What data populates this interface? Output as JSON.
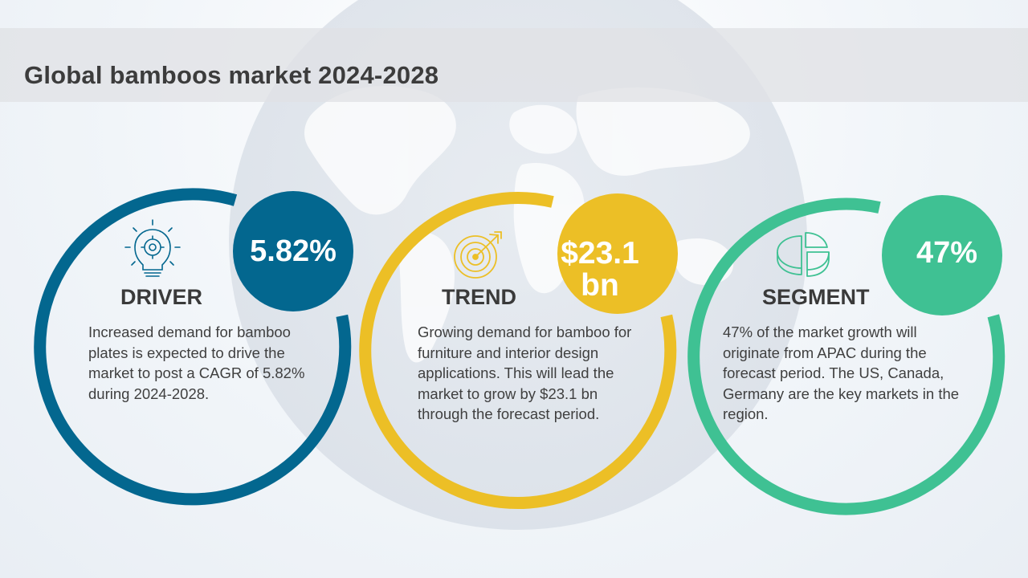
{
  "title": "Global bamboos market 2024-2028",
  "colors": {
    "driver": "#03678f",
    "trend": "#ecbf26",
    "segment": "#3fc193",
    "title_band": "#e0e2e6",
    "text": "#3f3f3f"
  },
  "cards": [
    {
      "key": "driver",
      "metric": "5.82%",
      "label": "DRIVER",
      "icon": "lightbulb-gear-icon",
      "description": "Increased demand for bamboo plates is expected to drive the market to post a CAGR of 5.82% during 2024-2028."
    },
    {
      "key": "trend",
      "metric_line1": "$23.1",
      "metric_line2": "bn",
      "label": "TREND",
      "icon": "target-arrow-icon",
      "description": "Growing demand for bamboo for furniture and interior design applications. This will lead the market to grow by $23.1 bn through the forecast period."
    },
    {
      "key": "segment",
      "metric": "47%",
      "label": "SEGMENT",
      "icon": "pie-chart-icon",
      "description": "47% of the market growth will originate from APAC during the forecast period. The US, Canada, Germany are the key markets in the region."
    }
  ]
}
